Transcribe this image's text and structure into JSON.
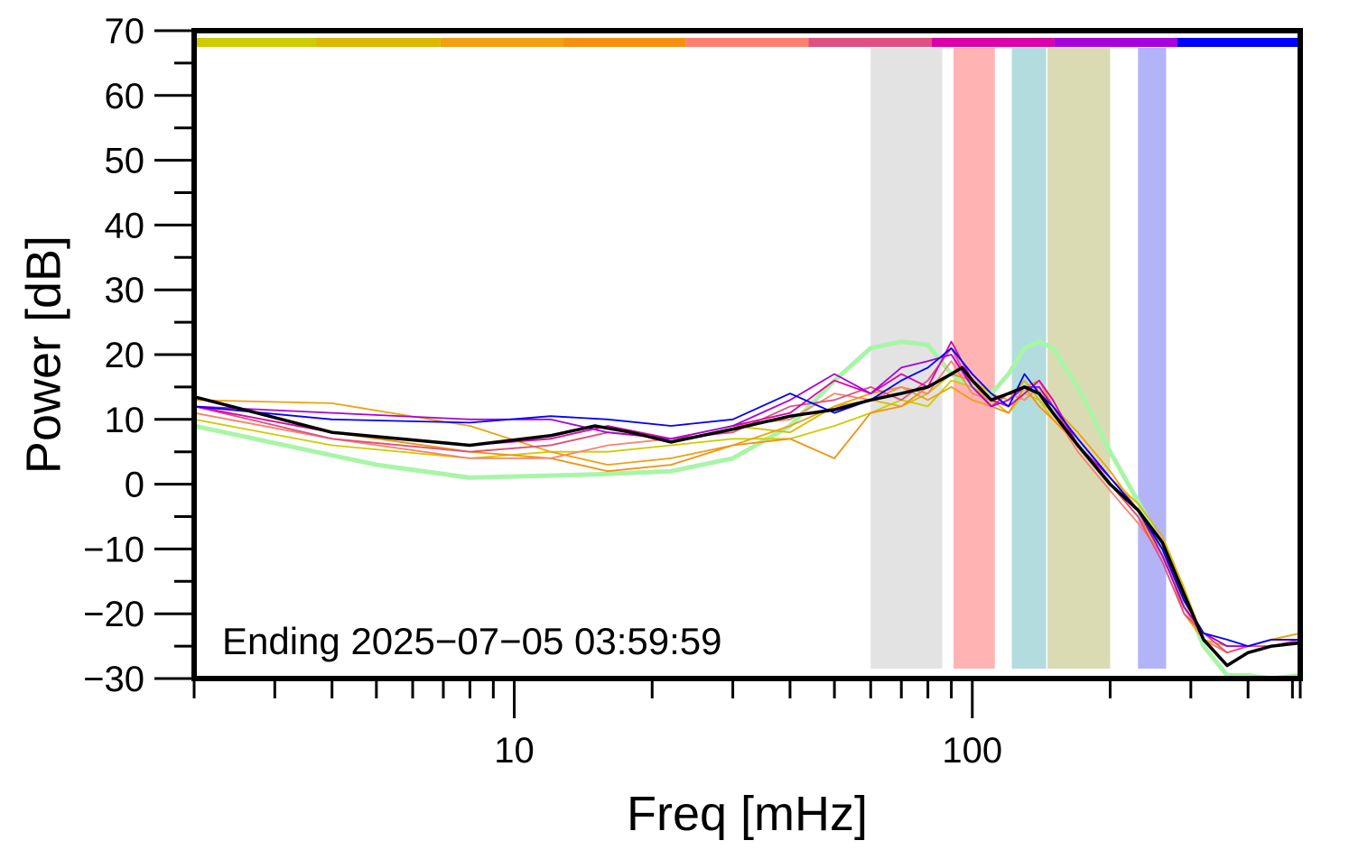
{
  "chart_data": {
    "type": "line",
    "title": "",
    "xlabel": "Freq [mHz]",
    "ylabel": "Power [dB]",
    "xscale": "log",
    "xlim": [
      2,
      520
    ],
    "ylim": [
      -30,
      70
    ],
    "x_tick_labels": [
      {
        "value": 10,
        "label": "10"
      },
      {
        "value": 100,
        "label": "100"
      }
    ],
    "y_ticks": [
      -30,
      -20,
      -10,
      0,
      10,
      20,
      30,
      40,
      50,
      60,
      70
    ],
    "y_tick_labels": [
      "−30",
      "−20",
      "−10",
      "0",
      "10",
      "20",
      "30",
      "40",
      "50",
      "60",
      "70"
    ],
    "annotation": "Ending 2025−07−05 03:59:59",
    "grid": false,
    "legend": "none",
    "top_color_bar": [
      {
        "from": 2,
        "to": 3.7,
        "color": "#cccc00"
      },
      {
        "from": 3.7,
        "to": 6.9,
        "color": "#ddb800"
      },
      {
        "from": 6.9,
        "to": 12.8,
        "color": "#f0a010"
      },
      {
        "from": 12.8,
        "to": 23.7,
        "color": "#f59010"
      },
      {
        "from": 23.7,
        "to": 43.9,
        "color": "#ff8070"
      },
      {
        "from": 43.9,
        "to": 81.5,
        "color": "#e05080"
      },
      {
        "from": 81.5,
        "to": 151,
        "color": "#dd00aa"
      },
      {
        "from": 151,
        "to": 280,
        "color": "#aa00dd"
      },
      {
        "from": 280,
        "to": 520,
        "color": "#0000ff"
      }
    ],
    "bands": [
      {
        "from": 60,
        "to": 86,
        "color": "#e3e3e3"
      },
      {
        "from": 91,
        "to": 112,
        "color": "#ffb3b3"
      },
      {
        "from": 122,
        "to": 145,
        "color": "#b3dcde"
      },
      {
        "from": 146,
        "to": 200,
        "color": "#dbdbb3"
      },
      {
        "from": 230,
        "to": 265,
        "color": "#b3b3f8"
      }
    ],
    "reference_line": {
      "color": "#a8f5a8",
      "x": [
        2,
        5,
        8,
        15,
        22,
        30,
        40,
        50,
        60,
        70,
        80,
        90,
        100,
        110,
        120,
        130,
        140,
        150,
        170,
        200,
        240,
        280,
        320,
        360,
        400,
        450,
        520
      ],
      "y": [
        9,
        3,
        1,
        1.5,
        2,
        4,
        9,
        16,
        21,
        22,
        21.5,
        17,
        15,
        14,
        17,
        21,
        22,
        21,
        15,
        5,
        -5,
        -15,
        -25,
        -29.5,
        -29.5,
        -30,
        -29.5
      ]
    },
    "mean_line": {
      "color": "#000000",
      "x": [
        2,
        4,
        8,
        12,
        15,
        18,
        22,
        30,
        40,
        50,
        60,
        70,
        80,
        90,
        95,
        100,
        110,
        120,
        130,
        140,
        150,
        170,
        200,
        230,
        260,
        290,
        320,
        360,
        400,
        450,
        520
      ],
      "y": [
        13.5,
        8,
        6,
        7.5,
        9,
        8,
        6.5,
        8.5,
        10.5,
        11.5,
        13,
        14,
        15,
        17,
        18,
        16,
        13,
        14,
        15,
        14,
        11,
        6,
        0,
        -4,
        -9,
        -17,
        -24,
        -28,
        -26,
        -25,
        -24.5
      ]
    },
    "series": [
      {
        "color": "#cccc00",
        "x": [
          2,
          4,
          8,
          12,
          16,
          22,
          30,
          40,
          50,
          60,
          70,
          80,
          90,
          100,
          110,
          120,
          130,
          140,
          150,
          170,
          200,
          230,
          260,
          290,
          320,
          360,
          400,
          450,
          520
        ],
        "y": [
          10,
          6,
          4,
          5,
          5,
          6,
          7,
          7,
          9,
          11,
          13,
          12,
          16,
          15,
          13,
          11,
          14,
          13,
          10,
          6,
          0,
          -5,
          -11,
          -18,
          -24,
          -26,
          -25,
          -24,
          -23
        ]
      },
      {
        "color": "#ddb800",
        "x": [
          2,
          4,
          8,
          12,
          16,
          22,
          30,
          40,
          50,
          60,
          70,
          80,
          90,
          100,
          110,
          120,
          130,
          140,
          150,
          170,
          200,
          230,
          260,
          290,
          320,
          360,
          400,
          450,
          520
        ],
        "y": [
          11,
          7,
          5,
          6,
          8,
          7,
          9,
          8,
          12,
          13,
          12,
          14,
          17,
          16,
          14,
          13,
          16,
          13,
          11,
          7,
          1,
          -3,
          -8,
          -16,
          -24,
          -25,
          -25,
          -24,
          -23
        ]
      },
      {
        "color": "#f0a010",
        "x": [
          2,
          4,
          8,
          12,
          16,
          22,
          30,
          40,
          50,
          60,
          70,
          80,
          90,
          100,
          110,
          120,
          130,
          140,
          150,
          170,
          200,
          230,
          260,
          290,
          320,
          360,
          400,
          450,
          520
        ],
        "y": [
          13,
          12.5,
          9,
          5,
          3,
          4,
          6,
          9,
          12,
          14,
          15,
          13,
          15,
          13,
          12,
          14,
          15,
          16,
          12,
          8,
          2,
          -4,
          -10,
          -20,
          -24,
          -26,
          -25,
          -24,
          -23
        ]
      },
      {
        "color": "#f59010",
        "x": [
          2,
          4,
          8,
          12,
          16,
          22,
          30,
          40,
          50,
          60,
          70,
          80,
          90,
          100,
          110,
          120,
          130,
          140,
          150,
          170,
          200,
          230,
          260,
          290,
          320,
          360,
          400,
          450,
          520
        ],
        "y": [
          12,
          8,
          5,
          4,
          2,
          3,
          6,
          7,
          4,
          11,
          12,
          15,
          17,
          16,
          12,
          11,
          15,
          12,
          10,
          6,
          0,
          -5,
          -10,
          -19,
          -24,
          -26,
          -25,
          -24,
          -24
        ]
      },
      {
        "color": "#ff8070",
        "x": [
          2,
          4,
          8,
          12,
          16,
          22,
          30,
          40,
          50,
          60,
          70,
          80,
          90,
          100,
          110,
          120,
          130,
          140,
          150,
          170,
          200,
          230,
          260,
          290,
          320,
          360,
          400,
          450,
          520
        ],
        "y": [
          11,
          7,
          4,
          4,
          6,
          7,
          9,
          10,
          14,
          13,
          15,
          14,
          19,
          14,
          13,
          14,
          13,
          15,
          11,
          5,
          -1,
          -6,
          -11,
          -19,
          -24,
          -26,
          -25,
          -25,
          -24
        ]
      },
      {
        "color": "#e05080",
        "x": [
          2,
          4,
          8,
          12,
          16,
          22,
          30,
          40,
          50,
          60,
          70,
          80,
          90,
          100,
          110,
          120,
          130,
          140,
          150,
          170,
          200,
          230,
          260,
          290,
          320,
          360,
          400,
          450,
          520
        ],
        "y": [
          12,
          7,
          5,
          6,
          8,
          7,
          8,
          12,
          13,
          15,
          13,
          16,
          21,
          15,
          12,
          14,
          15,
          14,
          12,
          6,
          0,
          -5,
          -12,
          -20,
          -23,
          -26,
          -25,
          -25,
          -24
        ]
      },
      {
        "color": "#dd00aa",
        "x": [
          2,
          4,
          8,
          12,
          16,
          22,
          30,
          40,
          50,
          60,
          70,
          80,
          90,
          100,
          110,
          120,
          130,
          140,
          150,
          170,
          200,
          230,
          260,
          290,
          320,
          360,
          400,
          450,
          520
        ],
        "y": [
          12,
          8,
          6,
          7,
          9,
          7,
          9,
          11,
          16,
          14,
          17,
          15,
          22,
          16,
          13,
          12,
          14,
          16,
          13,
          6,
          1,
          -4,
          -10,
          -18,
          -23,
          -25,
          -25,
          -24,
          -24
        ]
      },
      {
        "color": "#aa00dd",
        "x": [
          2,
          4,
          8,
          12,
          16,
          22,
          30,
          40,
          50,
          60,
          70,
          80,
          90,
          100,
          110,
          120,
          130,
          140,
          150,
          170,
          200,
          230,
          260,
          290,
          320,
          360,
          400,
          450,
          520
        ],
        "y": [
          12,
          11,
          10,
          10,
          8,
          7,
          9,
          13,
          17,
          14,
          18,
          19,
          20,
          15,
          12,
          13,
          15,
          15,
          12,
          7,
          1,
          -4,
          -11,
          -19,
          -23,
          -25,
          -25,
          -24,
          -24
        ]
      },
      {
        "color": "#0000ff",
        "x": [
          2,
          4,
          8,
          12,
          16,
          22,
          30,
          40,
          50,
          60,
          70,
          80,
          90,
          100,
          110,
          120,
          130,
          140,
          150,
          170,
          200,
          230,
          260,
          290,
          320,
          360,
          400,
          450,
          520
        ],
        "y": [
          12,
          10,
          9.5,
          10.5,
          10,
          9,
          10,
          14,
          11,
          13,
          16,
          18,
          21,
          17,
          14,
          12,
          17,
          14,
          12,
          7,
          1,
          -4,
          -10,
          -18,
          -23,
          -24,
          -25,
          -24,
          -24
        ]
      }
    ]
  }
}
